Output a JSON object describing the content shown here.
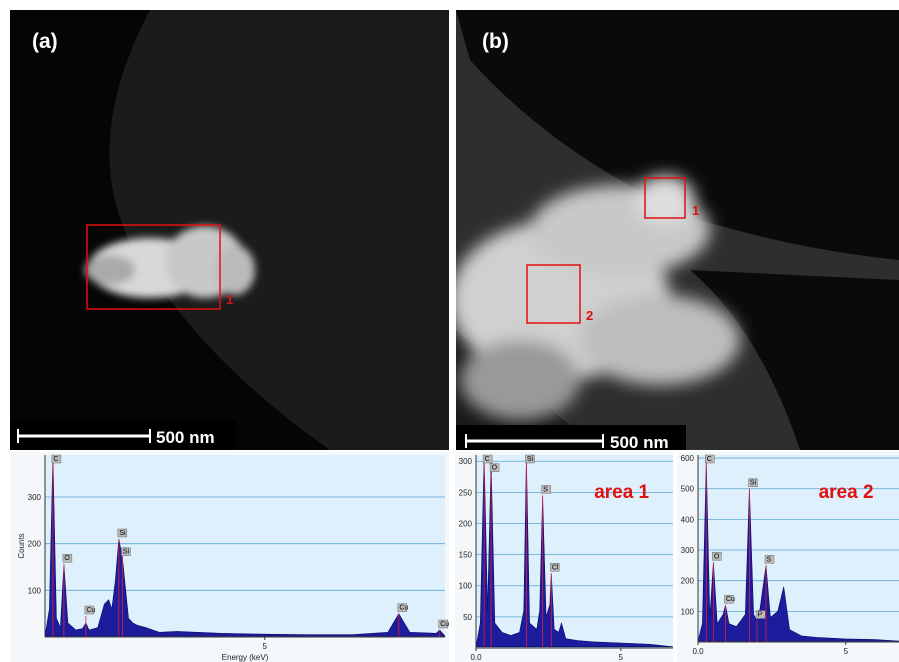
{
  "panels": [
    {
      "label": "(a)",
      "scale_bar": "500 nm",
      "regions": [
        "1"
      ]
    },
    {
      "label": "(b)",
      "scale_bar": "500 nm",
      "regions": [
        "1",
        "2"
      ]
    }
  ],
  "chart_data": [
    {
      "type": "area",
      "y_label": "Counts",
      "x_label": "Energy (keV)",
      "color": "#1c1c9c",
      "grid": true,
      "x": [
        0,
        0.1,
        0.18,
        0.26,
        0.35,
        0.43,
        0.52,
        0.7,
        0.85,
        0.93,
        1.0,
        1.2,
        1.35,
        1.45,
        1.52,
        1.6,
        1.68,
        1.76,
        1.9,
        2.0,
        2.1,
        2.3,
        2.6,
        3.0,
        4,
        5,
        6,
        7,
        7.8,
        8.05,
        8.3,
        8.9,
        8.98,
        9.1
      ],
      "values": [
        2,
        60,
        390,
        40,
        20,
        156,
        30,
        15,
        18,
        30,
        15,
        20,
        70,
        80,
        60,
        120,
        210,
        170,
        40,
        30,
        25,
        20,
        10,
        12,
        8,
        6,
        5,
        5,
        10,
        50,
        10,
        8,
        15,
        2
      ],
      "annotations": [
        {
          "text": "C",
          "x": 0.18,
          "y": 390
        },
        {
          "text": "O",
          "x": 0.43,
          "y": 156
        },
        {
          "text": "Cu",
          "x": 0.93,
          "y": 45
        },
        {
          "text": "Si",
          "x": 1.68,
          "y": 210
        },
        {
          "text": "Si",
          "x": 1.76,
          "y": 170
        },
        {
          "text": "Cu",
          "x": 8.05,
          "y": 50
        },
        {
          "text": "Cu",
          "x": 8.98,
          "y": 15
        }
      ],
      "xlim": [
        0,
        9.1
      ],
      "ylim": [
        0,
        390
      ],
      "xticks": [
        5
      ],
      "yticks": [
        100,
        200,
        300
      ]
    },
    {
      "type": "area",
      "title": "area 1",
      "color": "#1c1c9c",
      "grid": true,
      "x": [
        0,
        0.15,
        0.28,
        0.4,
        0.52,
        0.65,
        0.9,
        1.2,
        1.5,
        1.65,
        1.74,
        1.85,
        2.1,
        2.2,
        2.3,
        2.42,
        2.55,
        2.6,
        2.7,
        2.85,
        2.95,
        3.1,
        3.5,
        4,
        5,
        6,
        6.8
      ],
      "values": [
        2,
        40,
        310,
        60,
        300,
        40,
        25,
        20,
        25,
        60,
        305,
        40,
        30,
        60,
        245,
        50,
        70,
        120,
        30,
        25,
        40,
        15,
        12,
        10,
        8,
        6,
        2
      ],
      "annotations": [
        {
          "text": "C",
          "x": 0.28,
          "y": 300
        },
        {
          "text": "O",
          "x": 0.52,
          "y": 280
        },
        {
          "text": "Si",
          "x": 1.74,
          "y": 300
        },
        {
          "text": "S",
          "x": 2.3,
          "y": 245
        },
        {
          "text": "Cl",
          "x": 2.6,
          "y": 120
        }
      ],
      "xlim": [
        0,
        6.8
      ],
      "ylim": [
        0,
        310
      ],
      "xticks": [
        {
          "value": 0,
          "label": "0.0"
        },
        5
      ],
      "yticks": [
        50,
        100,
        150,
        200,
        250,
        300
      ]
    },
    {
      "type": "area",
      "title": "area 2",
      "color": "#1c1c9c",
      "grid": true,
      "x": [
        0,
        0.15,
        0.28,
        0.4,
        0.52,
        0.65,
        0.85,
        0.93,
        1.05,
        1.3,
        1.6,
        1.74,
        1.88,
        2.0,
        2.1,
        2.3,
        2.45,
        2.7,
        2.9,
        3.1,
        3.5,
        4,
        5,
        6,
        6.8
      ],
      "values": [
        3,
        60,
        590,
        80,
        260,
        60,
        90,
        120,
        60,
        50,
        90,
        500,
        90,
        70,
        110,
        250,
        80,
        100,
        180,
        40,
        20,
        15,
        10,
        8,
        3
      ],
      "annotations": [
        {
          "text": "C",
          "x": 0.28,
          "y": 590
        },
        {
          "text": "O",
          "x": 0.52,
          "y": 260
        },
        {
          "text": "Cu",
          "x": 0.93,
          "y": 120
        },
        {
          "text": "P",
          "x": 2.0,
          "y": 70
        },
        {
          "text": "Si",
          "x": 1.74,
          "y": 500
        },
        {
          "text": "S",
          "x": 2.3,
          "y": 250
        }
      ],
      "xlim": [
        0,
        6.8
      ],
      "ylim": [
        0,
        610
      ],
      "xticks": [
        {
          "value": 0,
          "label": "0.0"
        },
        5
      ],
      "yticks": [
        100,
        200,
        300,
        400,
        500,
        600
      ]
    }
  ]
}
